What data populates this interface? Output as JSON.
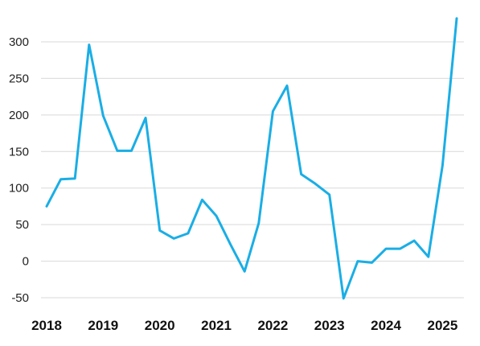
{
  "chart_data": {
    "type": "line",
    "title": "",
    "xlabel": "",
    "ylabel": "",
    "ylim": [
      -50,
      330
    ],
    "xlim": [
      2018.0,
      2025.25
    ],
    "y_ticks": [
      -50,
      0,
      50,
      100,
      150,
      200,
      250,
      300
    ],
    "x_ticks": [
      "2018",
      "2019",
      "2020",
      "2021",
      "2022",
      "2023",
      "2024",
      "2025"
    ],
    "grid": true,
    "legend": "none",
    "colors": {
      "line": "#1aaee5",
      "grid": "#d9d9d9"
    },
    "series": [
      {
        "x": [
          "2018Q1",
          "2018Q2",
          "2018Q3",
          "2018Q4",
          "2019Q1",
          "2019Q2",
          "2019Q3",
          "2019Q4",
          "2020Q1",
          "2020Q2",
          "2020Q3",
          "2020Q4",
          "2021Q1",
          "2021Q2",
          "2021Q3",
          "2021Q4",
          "2022Q1",
          "2022Q2",
          "2022Q3",
          "2022Q4",
          "2023Q1",
          "2023Q2",
          "2023Q3",
          "2023Q4",
          "2024Q1",
          "2024Q2",
          "2024Q3",
          "2024Q4",
          "2025Q1",
          "2025Q2"
        ],
        "values": [
          75,
          112,
          113,
          296,
          199,
          151,
          151,
          196,
          42,
          31,
          38,
          84,
          62,
          23,
          -14,
          52,
          205,
          240,
          119,
          106,
          91,
          -51,
          0,
          -2,
          17,
          17,
          28,
          6,
          131,
          332
        ]
      }
    ]
  }
}
